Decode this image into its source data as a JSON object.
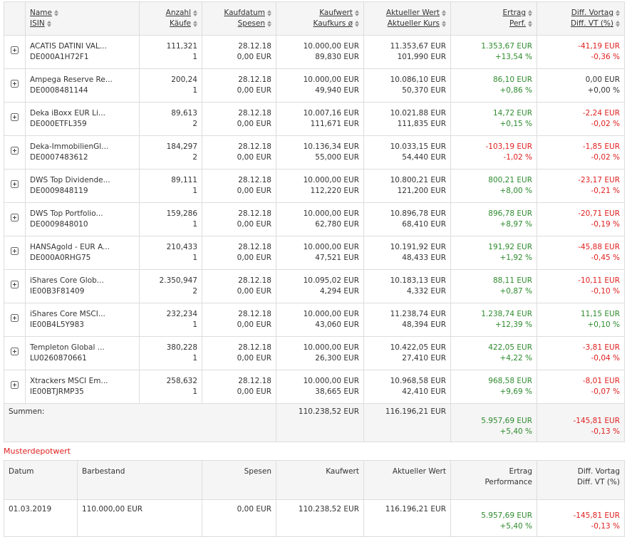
{
  "portfolio": {
    "columns": [
      {
        "top": "Name",
        "bottom": "ISIN"
      },
      {
        "top": "Anzahl",
        "bottom": "Käufe"
      },
      {
        "top": "Kaufdatum",
        "bottom": "Spesen"
      },
      {
        "top": "Kaufwert",
        "bottom": "Kaufkurs ø"
      },
      {
        "top": "Aktueller Wert",
        "bottom": "Aktueller Kurs"
      },
      {
        "top": "Ertrag",
        "bottom": "Perf."
      },
      {
        "top": "Diff. Vortag",
        "bottom": "Diff. VT (%)"
      }
    ],
    "rows": [
      [
        "ACATIS DATINI VAL...",
        "DE000A1H72F1",
        "111,321",
        "1",
        "28.12.18",
        "0,00 EUR",
        "10.000,00 EUR",
        "89,830 EUR",
        "11.353,67 EUR",
        "101,990 EUR",
        "1.353,67 EUR",
        "+13,54 %",
        "-41,19 EUR",
        "-0,36 %"
      ],
      [
        "Ampega Reserve Re...",
        "DE0008481144",
        "200,24",
        "1",
        "28.12.18",
        "0,00 EUR",
        "10.000,00 EUR",
        "49,940 EUR",
        "10.086,10 EUR",
        "50,370 EUR",
        "86,10 EUR",
        "+0,86 %",
        "0,00 EUR",
        "+0,00 %"
      ],
      [
        "Deka iBoxx EUR Li...",
        "DE000ETFL359",
        "89,613",
        "2",
        "28.12.18",
        "0,00 EUR",
        "10.007,16 EUR",
        "111,671 EUR",
        "10.021,88 EUR",
        "111,835 EUR",
        "14,72 EUR",
        "+0,15 %",
        "-2,24 EUR",
        "-0,02 %"
      ],
      [
        "Deka-ImmobilienGl...",
        "DE0007483612",
        "184,297",
        "2",
        "28.12.18",
        "0,00 EUR",
        "10.136,34 EUR",
        "55,000 EUR",
        "10.033,15 EUR",
        "54,440 EUR",
        "-103,19 EUR",
        "-1,02 %",
        "-1,85 EUR",
        "-0,02 %"
      ],
      [
        "DWS Top Dividende...",
        "DE0009848119",
        "89,111",
        "1",
        "28.12.18",
        "0,00 EUR",
        "10.000,00 EUR",
        "112,220 EUR",
        "10.800,21 EUR",
        "121,200 EUR",
        "800,21 EUR",
        "+8,00 %",
        "-23,17 EUR",
        "-0,21 %"
      ],
      [
        "DWS Top Portfolio...",
        "DE0009848010",
        "159,286",
        "1",
        "28.12.18",
        "0,00 EUR",
        "10.000,00 EUR",
        "62,780 EUR",
        "10.896,78 EUR",
        "68,410 EUR",
        "896,78 EUR",
        "+8,97 %",
        "-20,71 EUR",
        "-0,19 %"
      ],
      [
        "HANSAgold - EUR A...",
        "DE000A0RHG75",
        "210,433",
        "1",
        "28.12.18",
        "0,00 EUR",
        "10.000,00 EUR",
        "47,521 EUR",
        "10.191,92 EUR",
        "48,433 EUR",
        "191,92 EUR",
        "+1,92 %",
        "-45,88 EUR",
        "-0,45 %"
      ],
      [
        "iShares Core Glob...",
        "IE00B3F81409",
        "2.350,947",
        "2",
        "28.12.18",
        "0,00 EUR",
        "10.095,02 EUR",
        "4,294 EUR",
        "10.183,13 EUR",
        "4,332 EUR",
        "88,11 EUR",
        "+0,87 %",
        "-10,11 EUR",
        "-0,10 %"
      ],
      [
        "iShares Core MSCI...",
        "IE00B4L5Y983",
        "232,234",
        "1",
        "28.12.18",
        "0,00 EUR",
        "10.000,00 EUR",
        "43,060 EUR",
        "11.238,74 EUR",
        "48,394 EUR",
        "1.238,74 EUR",
        "+12,39 %",
        "11,15 EUR",
        "+0,10 %"
      ],
      [
        "Templeton Global ...",
        "LU0260870661",
        "380,228",
        "1",
        "28.12.18",
        "0,00 EUR",
        "10.000,00 EUR",
        "26,300 EUR",
        "10.422,05 EUR",
        "27,410 EUR",
        "422,05 EUR",
        "+4,22 %",
        "-3,81 EUR",
        "-0,04 %"
      ],
      [
        "Xtrackers MSCI Em...",
        "IE00BTJRMP35",
        "258,632",
        "1",
        "28.12.18",
        "0,00 EUR",
        "10.000,00 EUR",
        "38,665 EUR",
        "10.968,58 EUR",
        "42,410 EUR",
        "968,58 EUR",
        "+9,69 %",
        "-8,01 EUR",
        "-0,07 %"
      ]
    ],
    "summary": {
      "label": "Summen:",
      "kaufwert": "110.238,52 EUR",
      "aktuell": "116.196,21 EUR",
      "ertrag": "5.957,69 EUR",
      "perf": "+5,40 %",
      "diff": "-145,81 EUR",
      "diffvt": "-0,13 %"
    }
  },
  "muster": {
    "title": "Musterdepotwert",
    "header": [
      "Datum",
      "Barbestand",
      "Spesen",
      "Kaufwert",
      "Aktueller Wert",
      [
        "Ertrag",
        "Performance"
      ],
      [
        "Diff. Vortag",
        "Diff. VT (%)"
      ]
    ],
    "row": [
      "01.03.2019",
      "110.000,00 EUR",
      "0,00 EUR",
      "110.238,52 EUR",
      "116.196,21 EUR",
      [
        "5.957,69 EUR",
        "+5,40 %"
      ],
      [
        "-145,81 EUR",
        "-0,13 %"
      ]
    ]
  }
}
